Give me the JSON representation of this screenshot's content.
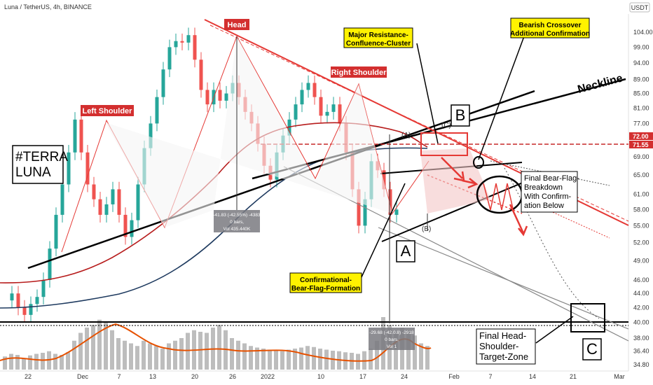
{
  "header": {
    "symbol_line": "Luna / TetherUS, 4h, BINANCE",
    "currency_badge": "USDT"
  },
  "colors": {
    "up_candle": "#26a69a",
    "down_candle": "#ef5350",
    "ma_red": "#b71c1c",
    "ma_navy": "#1e3a5f",
    "ma_orange": "#e65100",
    "pattern_line": "#e53935",
    "box_fill": "#f4c7c7",
    "callout_yellow": "#fff200",
    "price_tag": "#d32f2f",
    "neckline": "#000000"
  },
  "chart_data": {
    "type": "candlestick",
    "xlabel": "",
    "ylabel": "",
    "y_axis_scale": "log",
    "ylim": [
      33.5,
      108
    ],
    "x_ticks": [
      "22",
      "Dec",
      "7",
      "13",
      "20",
      "26",
      "2022",
      "10",
      "17",
      "24",
      "Feb",
      "7",
      "14",
      "21",
      "Mar"
    ],
    "y_ticks": [
      104.0,
      99.0,
      94.0,
      89.0,
      85.0,
      81.0,
      77.0,
      72.0,
      69.0,
      65.0,
      61.0,
      58.0,
      55.0,
      52.0,
      49.0,
      46.0,
      44.0,
      42.0,
      40.0,
      38.0,
      36.4,
      34.8
    ],
    "price_tags": [
      "72.00",
      "71.55"
    ],
    "price_path": [
      [
        0,
        43
      ],
      [
        2,
        44
      ],
      [
        4,
        42
      ],
      [
        6,
        41
      ],
      [
        8,
        42.5
      ],
      [
        10,
        43.5
      ],
      [
        11,
        46
      ],
      [
        12,
        51
      ],
      [
        13,
        57
      ],
      [
        14,
        63
      ],
      [
        15,
        70
      ],
      [
        16,
        78
      ],
      [
        17,
        70
      ],
      [
        18,
        63
      ],
      [
        19,
        60
      ],
      [
        20,
        57
      ],
      [
        21,
        59
      ],
      [
        22,
        62
      ],
      [
        23,
        57
      ],
      [
        24,
        53
      ],
      [
        25,
        56
      ],
      [
        26,
        63
      ],
      [
        27,
        71
      ],
      [
        28,
        77
      ],
      [
        29,
        84
      ],
      [
        30,
        92
      ],
      [
        31,
        99
      ],
      [
        32,
        101
      ],
      [
        33,
        100.5
      ],
      [
        34,
        103
      ],
      [
        35,
        95
      ],
      [
        36,
        86
      ],
      [
        37,
        82
      ],
      [
        38,
        86
      ],
      [
        39,
        83
      ],
      [
        40,
        85
      ],
      [
        41,
        88
      ],
      [
        42,
        84
      ],
      [
        43,
        80
      ],
      [
        44,
        77
      ],
      [
        45,
        72
      ],
      [
        46,
        67
      ],
      [
        47,
        64
      ],
      [
        48,
        70
      ],
      [
        49,
        74
      ],
      [
        50,
        78
      ],
      [
        51,
        82
      ],
      [
        52,
        86
      ],
      [
        53,
        88
      ],
      [
        54,
        84
      ],
      [
        55,
        79
      ],
      [
        56,
        80
      ],
      [
        57,
        82
      ],
      [
        58,
        77
      ],
      [
        59,
        70
      ],
      [
        60,
        62
      ],
      [
        61,
        55
      ],
      [
        62,
        60
      ],
      [
        63,
        68
      ],
      [
        64,
        66
      ],
      [
        65,
        62
      ],
      [
        66,
        57
      ],
      [
        67,
        58
      ]
    ],
    "volume": [
      0.25,
      0.3,
      0.28,
      0.22,
      0.27,
      0.3,
      0.32,
      0.35,
      0.3,
      0.28,
      0.33,
      0.55,
      0.7,
      0.8,
      0.85,
      0.95,
      0.9,
      0.75,
      0.6,
      0.55,
      0.5,
      0.45,
      0.55,
      0.5,
      0.45,
      0.4,
      0.5,
      0.55,
      0.6,
      0.7,
      0.75,
      0.72,
      0.7,
      0.8,
      0.85,
      0.75,
      0.6,
      0.55,
      0.5,
      0.45,
      0.42,
      0.4,
      0.38,
      0.36,
      0.35,
      0.38,
      0.4,
      0.42,
      0.45,
      0.43,
      0.4,
      0.38,
      0.36,
      0.35,
      0.33,
      0.32,
      0.3,
      0.35,
      0.4,
      0.55,
      1.0,
      0.85,
      0.7,
      0.8,
      0.75,
      0.65,
      0.5,
      0.45
    ],
    "indicator_labels": [
      {
        "name": "vwap_readout",
        "lines": [
          "-41.83 (-42.55%) -4383",
          "0 bars,",
          "Vol 435.440K"
        ]
      },
      {
        "name": "vwap_readout_2",
        "lines": [
          "-29.68 (-42.0.8) -2918",
          "0 bars,",
          "Vol 1"
        ]
      }
    ],
    "annotations": {
      "head": "Head",
      "left_shoulder": "Left Shoulder",
      "right_shoulder": "Right Shoulder",
      "neckline": "Neckline",
      "terra": [
        "#TERRA",
        "LUNA"
      ],
      "major_resistance": [
        "Major Resistance-",
        "Confluence-Cluster"
      ],
      "bearish_crossover": [
        "Bearish Crossover",
        "Additional Confirmation"
      ],
      "final_bear_flag": [
        "Final Bear-Flag-",
        "Breakdown",
        "With Confirm-",
        "ation Below"
      ],
      "bear_flag_formation": [
        "Confirmational-",
        "Bear-Flag-Formation"
      ],
      "target_zone": [
        "Final Head-",
        "Shoulder-",
        "Target-Zone"
      ],
      "wave_a": "A",
      "wave_b": "B",
      "wave_c": "C",
      "small_a": "(A)",
      "small_b": "(B)",
      "small_c": "(C)"
    }
  }
}
